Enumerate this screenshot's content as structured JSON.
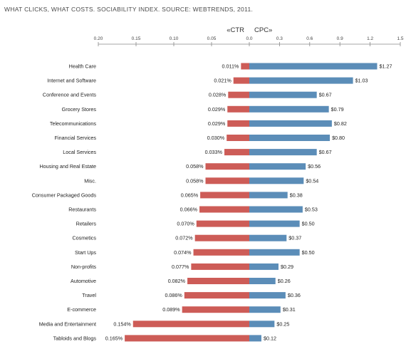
{
  "chart_data": {
    "type": "bar",
    "title": "WHAT CLICKS, WHAT COSTS. SOCIABILITY INDEX. SOURCE: WEBTRENDS, 2011.",
    "left_header": "«CTR",
    "right_header": "CPC»",
    "ctr_ticks": [
      "0.20",
      "0.15",
      "0.10",
      "0.05",
      "0.0"
    ],
    "cpc_ticks": [
      "0.0",
      "0.3",
      "0.6",
      "0.9",
      "1.2",
      "1.5"
    ],
    "categories": [
      "Health Care",
      "Internet and Software",
      "Conference and Events",
      "Grocery Stores",
      "Telecommunications",
      "Financial Services",
      "Local Services",
      "Housing and Real Estate",
      "Misc.",
      "Consumer Packaged Goods",
      "Restaurants",
      "Retailers",
      "Cosmetics",
      "Start Ups",
      "Non-profits",
      "Automotive",
      "Travel",
      "E-commerce",
      "Media and Entertainment",
      "Tabloids and Blogs"
    ],
    "series": [
      {
        "name": "CTR",
        "unit": "%",
        "values": [
          0.011,
          0.021,
          0.028,
          0.029,
          0.029,
          0.03,
          0.033,
          0.058,
          0.058,
          0.065,
          0.066,
          0.07,
          0.072,
          0.074,
          0.077,
          0.082,
          0.086,
          0.089,
          0.154,
          0.165
        ],
        "labels": [
          "0.011%",
          "0.021%",
          "0.028%",
          "0.029%",
          "0.029%",
          "0.030%",
          "0.033%",
          "0.058%",
          "0.058%",
          "0.065%",
          "0.066%",
          "0.070%",
          "0.072%",
          "0.074%",
          "0.077%",
          "0.082%",
          "0.086%",
          "0.089%",
          "0.154%",
          "0.165%"
        ],
        "color": "#cd5c57",
        "range": [
          0,
          0.2
        ]
      },
      {
        "name": "CPC",
        "unit": "$",
        "values": [
          1.27,
          1.03,
          0.67,
          0.79,
          0.82,
          0.8,
          0.67,
          0.56,
          0.54,
          0.38,
          0.53,
          0.5,
          0.37,
          0.5,
          0.29,
          0.26,
          0.36,
          0.31,
          0.25,
          0.12
        ],
        "labels": [
          "$1.27",
          "$1.03",
          "$0.67",
          "$0.79",
          "$0.82",
          "$0.80",
          "$0.67",
          "$0.56",
          "$0.54",
          "$0.38",
          "$0.53",
          "$0.50",
          "$0.37",
          "$0.50",
          "$0.29",
          "$0.26",
          "$0.36",
          "$0.31",
          "$0.25",
          "$0.12"
        ],
        "color": "#5b8db8",
        "range": [
          0,
          1.5
        ]
      }
    ]
  }
}
